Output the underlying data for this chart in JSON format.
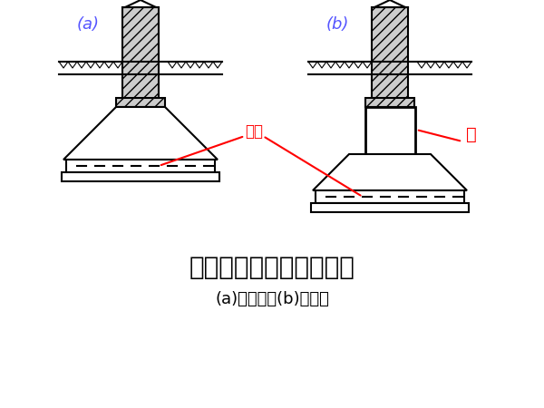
{
  "title": "墙下钢筋混凝土条形基础",
  "subtitle": "(a)无肋的；(b)有肋的",
  "label_a": "(a)",
  "label_b": "(b)",
  "label_diban": "底板",
  "label_lei": "肋",
  "bg_color": "#ffffff",
  "line_color": "#000000",
  "label_color_ab": "#5555ff",
  "title_fontsize": 20,
  "subtitle_fontsize": 13,
  "lw": 1.5
}
